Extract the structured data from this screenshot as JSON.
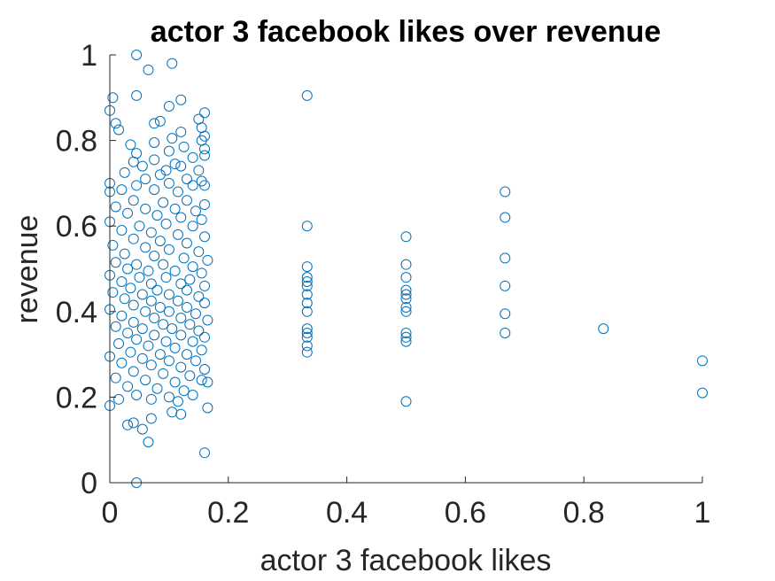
{
  "chart_data": {
    "type": "scatter",
    "title": "actor 3 facebook likes over revenue",
    "xlabel": "actor 3 facebook likes",
    "ylabel": "revenue",
    "xlim": [
      0,
      1
    ],
    "ylim": [
      0,
      1
    ],
    "xticks": [
      "0",
      "0.2",
      "0.4",
      "0.6",
      "0.8",
      "1"
    ],
    "yticks": [
      "0",
      "0.2",
      "0.4",
      "0.6",
      "0.8",
      "1"
    ],
    "grid": false,
    "marker": "open-circle",
    "series_color": "#0072BD",
    "series": [
      {
        "points": [
          [
            0.045,
            1.0
          ],
          [
            0.065,
            0.965
          ],
          [
            0.105,
            0.98
          ],
          [
            0.005,
            0.9
          ],
          [
            0.045,
            0.905
          ],
          [
            0.12,
            0.895
          ],
          [
            0.1,
            0.88
          ],
          [
            0.0,
            0.87
          ],
          [
            0.16,
            0.865
          ],
          [
            0.15,
            0.85
          ],
          [
            0.085,
            0.845
          ],
          [
            0.075,
            0.84
          ],
          [
            0.01,
            0.84
          ],
          [
            0.155,
            0.83
          ],
          [
            0.015,
            0.825
          ],
          [
            0.12,
            0.82
          ],
          [
            0.16,
            0.81
          ],
          [
            0.105,
            0.805
          ],
          [
            0.155,
            0.8
          ],
          [
            0.075,
            0.795
          ],
          [
            0.035,
            0.79
          ],
          [
            0.125,
            0.785
          ],
          [
            0.16,
            0.78
          ],
          [
            0.1,
            0.775
          ],
          [
            0.045,
            0.77
          ],
          [
            0.16,
            0.765
          ],
          [
            0.14,
            0.76
          ],
          [
            0.075,
            0.755
          ],
          [
            0.04,
            0.75
          ],
          [
            0.11,
            0.745
          ],
          [
            0.12,
            0.74
          ],
          [
            0.055,
            0.74
          ],
          [
            0.095,
            0.73
          ],
          [
            0.15,
            0.73
          ],
          [
            0.025,
            0.725
          ],
          [
            0.085,
            0.72
          ],
          [
            0.06,
            0.71
          ],
          [
            0.13,
            0.71
          ],
          [
            0.155,
            0.705
          ],
          [
            0.0,
            0.7
          ],
          [
            0.045,
            0.695
          ],
          [
            0.1,
            0.7
          ],
          [
            0.14,
            0.695
          ],
          [
            0.16,
            0.695
          ],
          [
            0.02,
            0.685
          ],
          [
            0.075,
            0.685
          ],
          [
            0.115,
            0.68
          ],
          [
            0.0,
            0.68
          ],
          [
            0.04,
            0.66
          ],
          [
            0.09,
            0.655
          ],
          [
            0.13,
            0.66
          ],
          [
            0.16,
            0.65
          ],
          [
            0.01,
            0.645
          ],
          [
            0.06,
            0.64
          ],
          [
            0.11,
            0.64
          ],
          [
            0.145,
            0.635
          ],
          [
            0.03,
            0.63
          ],
          [
            0.08,
            0.625
          ],
          [
            0.12,
            0.62
          ],
          [
            0.155,
            0.615
          ],
          [
            0.0,
            0.61
          ],
          [
            0.05,
            0.6
          ],
          [
            0.095,
            0.605
          ],
          [
            0.14,
            0.6
          ],
          [
            0.02,
            0.59
          ],
          [
            0.07,
            0.585
          ],
          [
            0.115,
            0.58
          ],
          [
            0.16,
            0.575
          ],
          [
            0.04,
            0.57
          ],
          [
            0.085,
            0.565
          ],
          [
            0.13,
            0.56
          ],
          [
            0.005,
            0.555
          ],
          [
            0.06,
            0.55
          ],
          [
            0.1,
            0.545
          ],
          [
            0.15,
            0.54
          ],
          [
            0.025,
            0.535
          ],
          [
            0.075,
            0.53
          ],
          [
            0.125,
            0.525
          ],
          [
            0.165,
            0.52
          ],
          [
            0.01,
            0.515
          ],
          [
            0.045,
            0.51
          ],
          [
            0.09,
            0.51
          ],
          [
            0.14,
            0.505
          ],
          [
            0.03,
            0.5
          ],
          [
            0.065,
            0.495
          ],
          [
            0.11,
            0.495
          ],
          [
            0.155,
            0.49
          ],
          [
            0.0,
            0.485
          ],
          [
            0.05,
            0.48
          ],
          [
            0.095,
            0.48
          ],
          [
            0.135,
            0.475
          ],
          [
            0.02,
            0.47
          ],
          [
            0.07,
            0.465
          ],
          [
            0.12,
            0.465
          ],
          [
            0.16,
            0.46
          ],
          [
            0.035,
            0.455
          ],
          [
            0.08,
            0.45
          ],
          [
            0.13,
            0.45
          ],
          [
            0.005,
            0.445
          ],
          [
            0.055,
            0.44
          ],
          [
            0.1,
            0.44
          ],
          [
            0.15,
            0.435
          ],
          [
            0.025,
            0.43
          ],
          [
            0.07,
            0.425
          ],
          [
            0.115,
            0.425
          ],
          [
            0.16,
            0.42
          ],
          [
            0.04,
            0.415
          ],
          [
            0.085,
            0.41
          ],
          [
            0.13,
            0.41
          ],
          [
            0.0,
            0.405
          ],
          [
            0.06,
            0.4
          ],
          [
            0.1,
            0.4
          ],
          [
            0.145,
            0.395
          ],
          [
            0.02,
            0.39
          ],
          [
            0.075,
            0.385
          ],
          [
            0.12,
            0.385
          ],
          [
            0.165,
            0.38
          ],
          [
            0.04,
            0.375
          ],
          [
            0.09,
            0.37
          ],
          [
            0.135,
            0.37
          ],
          [
            0.01,
            0.365
          ],
          [
            0.055,
            0.36
          ],
          [
            0.105,
            0.36
          ],
          [
            0.15,
            0.355
          ],
          [
            0.03,
            0.35
          ],
          [
            0.075,
            0.345
          ],
          [
            0.12,
            0.345
          ],
          [
            0.16,
            0.34
          ],
          [
            0.045,
            0.335
          ],
          [
            0.095,
            0.33
          ],
          [
            0.14,
            0.33
          ],
          [
            0.015,
            0.325
          ],
          [
            0.065,
            0.32
          ],
          [
            0.11,
            0.315
          ],
          [
            0.155,
            0.31
          ],
          [
            0.035,
            0.305
          ],
          [
            0.085,
            0.3
          ],
          [
            0.13,
            0.3
          ],
          [
            0.0,
            0.295
          ],
          [
            0.055,
            0.29
          ],
          [
            0.1,
            0.285
          ],
          [
            0.145,
            0.285
          ],
          [
            0.02,
            0.28
          ],
          [
            0.07,
            0.275
          ],
          [
            0.12,
            0.27
          ],
          [
            0.16,
            0.265
          ],
          [
            0.04,
            0.26
          ],
          [
            0.09,
            0.255
          ],
          [
            0.135,
            0.25
          ],
          [
            0.01,
            0.245
          ],
          [
            0.06,
            0.24
          ],
          [
            0.11,
            0.235
          ],
          [
            0.155,
            0.24
          ],
          [
            0.03,
            0.225
          ],
          [
            0.08,
            0.22
          ],
          [
            0.125,
            0.215
          ],
          [
            0.165,
            0.235
          ],
          [
            0.045,
            0.205
          ],
          [
            0.1,
            0.2
          ],
          [
            0.14,
            0.205
          ],
          [
            0.015,
            0.195
          ],
          [
            0.07,
            0.195
          ],
          [
            0.115,
            0.19
          ],
          [
            0.0,
            0.18
          ],
          [
            0.165,
            0.175
          ],
          [
            0.105,
            0.165
          ],
          [
            0.12,
            0.16
          ],
          [
            0.07,
            0.15
          ],
          [
            0.04,
            0.14
          ],
          [
            0.03,
            0.135
          ],
          [
            0.055,
            0.125
          ],
          [
            0.065,
            0.095
          ],
          [
            0.16,
            0.07
          ],
          [
            0.045,
            0.0
          ],
          [
            0.333,
            0.905
          ],
          [
            0.333,
            0.6
          ],
          [
            0.333,
            0.505
          ],
          [
            0.333,
            0.48
          ],
          [
            0.333,
            0.47
          ],
          [
            0.333,
            0.46
          ],
          [
            0.333,
            0.44
          ],
          [
            0.333,
            0.42
          ],
          [
            0.333,
            0.4
          ],
          [
            0.333,
            0.36
          ],
          [
            0.333,
            0.35
          ],
          [
            0.333,
            0.34
          ],
          [
            0.333,
            0.32
          ],
          [
            0.333,
            0.305
          ],
          [
            0.5,
            0.575
          ],
          [
            0.5,
            0.51
          ],
          [
            0.5,
            0.48
          ],
          [
            0.5,
            0.45
          ],
          [
            0.5,
            0.44
          ],
          [
            0.5,
            0.43
          ],
          [
            0.5,
            0.41
          ],
          [
            0.5,
            0.4
          ],
          [
            0.5,
            0.35
          ],
          [
            0.5,
            0.34
          ],
          [
            0.5,
            0.33
          ],
          [
            0.5,
            0.19
          ],
          [
            0.667,
            0.68
          ],
          [
            0.667,
            0.62
          ],
          [
            0.667,
            0.525
          ],
          [
            0.667,
            0.46
          ],
          [
            0.667,
            0.395
          ],
          [
            0.667,
            0.35
          ],
          [
            0.833,
            0.36
          ],
          [
            1.0,
            0.285
          ],
          [
            1.0,
            0.21
          ]
        ]
      }
    ]
  }
}
